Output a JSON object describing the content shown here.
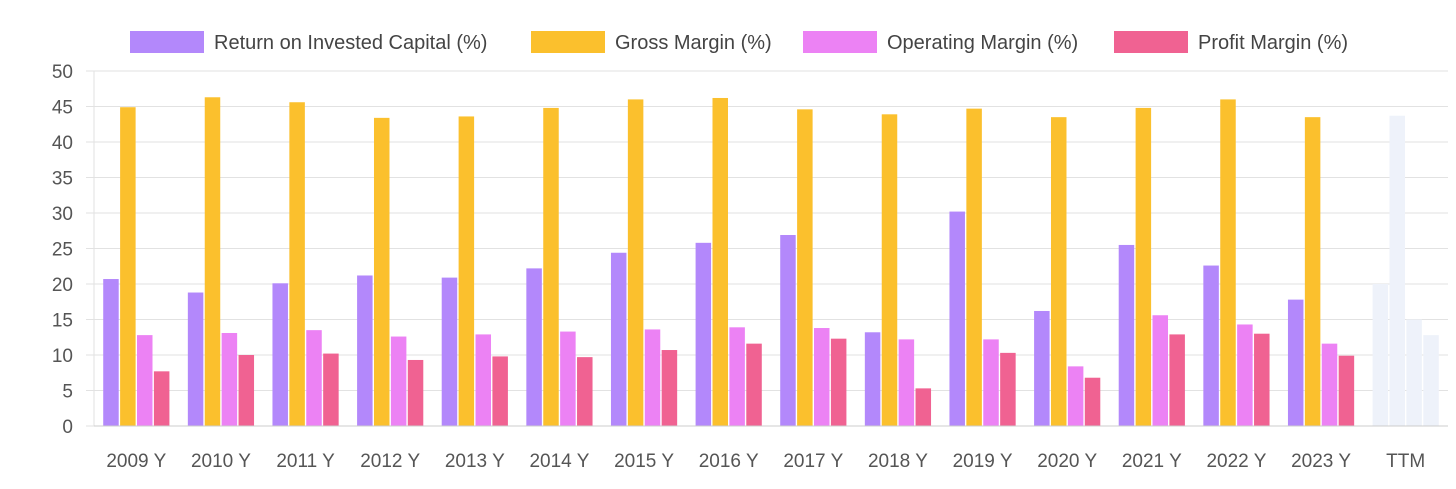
{
  "chart_data": {
    "type": "bar",
    "title": "",
    "xlabel": "",
    "ylabel": "",
    "ylim": [
      0,
      50
    ],
    "yticks": [
      0,
      5,
      10,
      15,
      20,
      25,
      30,
      35,
      40,
      45,
      50
    ],
    "grid": true,
    "legend_position": "top",
    "categories": [
      "2009 Y",
      "2010 Y",
      "2011 Y",
      "2012 Y",
      "2013 Y",
      "2014 Y",
      "2015 Y",
      "2016 Y",
      "2017 Y",
      "2018 Y",
      "2019 Y",
      "2020 Y",
      "2021 Y",
      "2022 Y",
      "2023 Y",
      "TTM"
    ],
    "highlighted_category": "TTM",
    "highlight_color": "#eef2fa",
    "series": [
      {
        "name": "Return on Invested Capital (%)",
        "color": "#b388fb",
        "values": [
          20.7,
          18.8,
          20.1,
          21.2,
          20.9,
          22.2,
          24.4,
          25.8,
          26.9,
          13.2,
          30.2,
          16.2,
          25.5,
          22.6,
          17.8,
          20.0
        ]
      },
      {
        "name": "Gross Margin (%)",
        "color": "#fbc02d",
        "values": [
          44.9,
          46.3,
          45.6,
          43.4,
          43.6,
          44.8,
          46.0,
          46.2,
          44.6,
          43.9,
          44.7,
          43.5,
          44.8,
          46.0,
          43.5,
          43.7
        ]
      },
      {
        "name": "Operating Margin (%)",
        "color": "#ec82f4",
        "values": [
          12.8,
          13.1,
          13.5,
          12.6,
          12.9,
          13.3,
          13.6,
          13.9,
          13.8,
          12.2,
          12.2,
          8.4,
          15.6,
          14.3,
          11.6,
          15.0
        ]
      },
      {
        "name": "Profit Margin (%)",
        "color": "#f06292",
        "values": [
          7.7,
          10.0,
          10.2,
          9.3,
          9.8,
          9.7,
          10.7,
          11.6,
          12.3,
          5.3,
          10.3,
          6.8,
          12.9,
          13.0,
          9.9,
          12.8
        ]
      }
    ]
  }
}
